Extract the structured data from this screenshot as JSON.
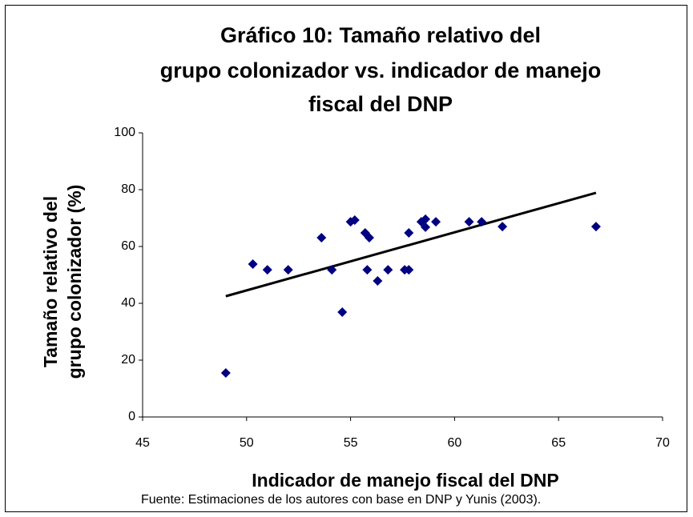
{
  "chart_data": {
    "type": "scatter",
    "title": [
      "Gráfico 10: Tamaño relativo del",
      "grupo colonizador vs. indicador de manejo",
      "fiscal del DNP"
    ],
    "x_label": "Indicador de manejo fiscal del DNP",
    "y_label": [
      "Tamaño relativo del",
      "grupo colonizador (%)"
    ],
    "source": "Fuente: Estimaciones de los autores con base en DNP y Yunis (2003).",
    "color": "#000080",
    "x": [
      49.0,
      50.3,
      51.0,
      52.0,
      53.6,
      54.1,
      54.6,
      55.0,
      55.2,
      55.7,
      55.9,
      55.8,
      56.3,
      56.8,
      57.6,
      57.8,
      57.8,
      58.4,
      58.6,
      58.6,
      59.1,
      60.7,
      61.3,
      62.3,
      66.8
    ],
    "y": [
      15.5,
      53.8,
      51.8,
      51.8,
      63.1,
      51.8,
      36.9,
      68.7,
      69.3,
      64.8,
      63.1,
      51.8,
      47.9,
      51.8,
      51.8,
      51.8,
      64.8,
      68.7,
      69.6,
      66.8,
      68.7,
      68.7,
      68.7,
      67.0,
      67.0
    ],
    "trendline": {
      "x": [
        49.0,
        66.8
      ],
      "y": [
        42.5,
        78.9
      ],
      "color": "#000000"
    },
    "xlim": [
      45,
      70
    ],
    "xticks": [
      45,
      50,
      55,
      60,
      65,
      70
    ],
    "ylim": [
      0,
      100
    ],
    "yticks": [
      0,
      20,
      40,
      60,
      80,
      100
    ]
  }
}
